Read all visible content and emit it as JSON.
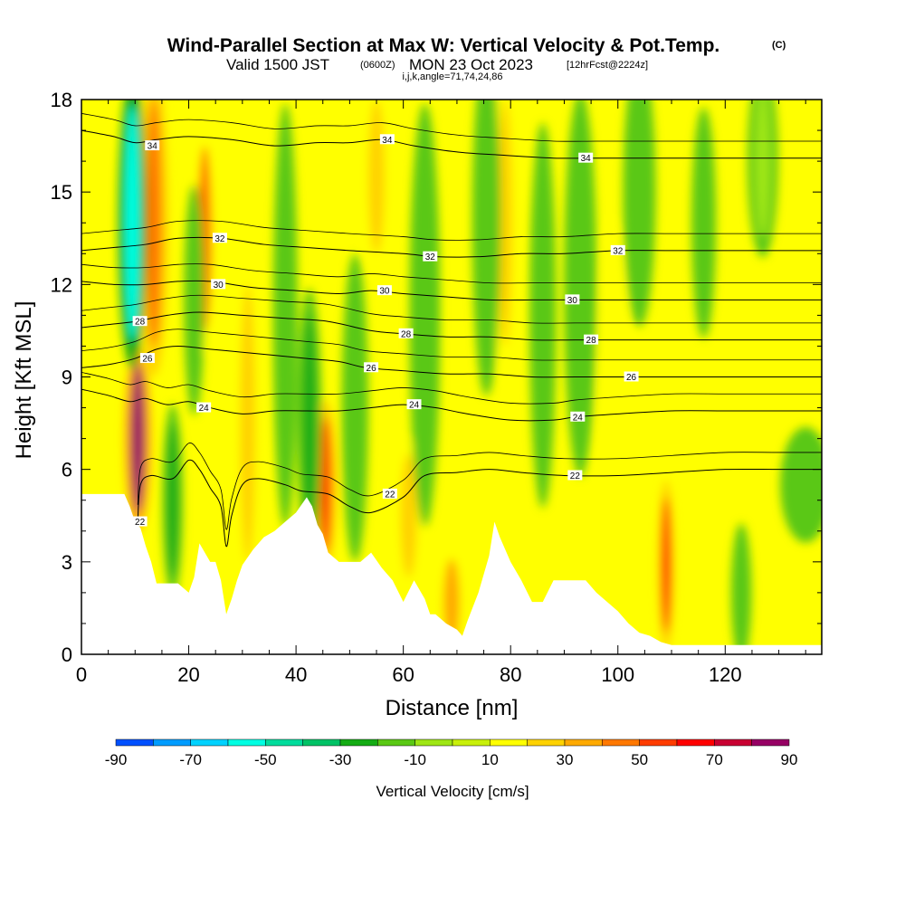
{
  "chart_data": {
    "type": "heatmap",
    "title": "Wind-Parallel Section at Max W: Vertical Velocity & Pot.Temp.",
    "title_unit": "(C)",
    "subtitle": {
      "valid": "Valid 1500 JST",
      "utc": "(0600Z)",
      "date": "MON 23 Oct 2023",
      "forecast": "[12hrFcst@2224z]"
    },
    "params": "i,j,k,angle=71,74,24,86",
    "xlabel": "Distance [nm]",
    "ylabel": "Height [Kft MSL]",
    "xlim": [
      0,
      138
    ],
    "ylim": [
      0,
      18
    ],
    "x_ticks": [
      0,
      20,
      40,
      60,
      80,
      100,
      120
    ],
    "y_ticks": [
      0,
      3,
      6,
      9,
      12,
      15,
      18
    ],
    "colorbar": {
      "label": "Vertical Velocity [cm/s]",
      "tick_labels": [
        "-90",
        "-70",
        "-50",
        "-30",
        "-10",
        "10",
        "30",
        "50",
        "70",
        "90"
      ],
      "levels": [
        -90,
        -80,
        -70,
        -60,
        -50,
        -40,
        -30,
        -20,
        -10,
        0,
        10,
        20,
        30,
        40,
        50,
        60,
        70,
        80,
        90
      ],
      "colors": [
        "#0000ff",
        "#0050ff",
        "#009cff",
        "#00d2ff",
        "#00ffe2",
        "#00dc9c",
        "#00c266",
        "#14ac14",
        "#5ac814",
        "#9ee614",
        "#c8f00a",
        "#ffff00",
        "#ffd200",
        "#ffaa00",
        "#ff7800",
        "#ff3c00",
        "#ff0000",
        "#c80032",
        "#960064",
        "#5a0096"
      ]
    },
    "background_color": "#ffff00",
    "terrain_profile": {
      "x": [
        0,
        4,
        8,
        9,
        10,
        11,
        12,
        13,
        14,
        16,
        18,
        20,
        21,
        22,
        24,
        25,
        26,
        27,
        28,
        29,
        30,
        32,
        34,
        36,
        38,
        40,
        42,
        43,
        44,
        45,
        46,
        48,
        50,
        52,
        54,
        56,
        58,
        60,
        62,
        64,
        65,
        66,
        68,
        70,
        71,
        72,
        74,
        76,
        77,
        78,
        80,
        82,
        84,
        86,
        88,
        90,
        92,
        94,
        96,
        98,
        100,
        102,
        104,
        106,
        108,
        110,
        112,
        115,
        120,
        125,
        130,
        135,
        138
      ],
      "y": [
        5.2,
        5.2,
        5.2,
        4.8,
        4.3,
        4.1,
        3.5,
        3.0,
        2.3,
        2.3,
        2.3,
        2.0,
        2.5,
        3.6,
        3.0,
        3.0,
        2.4,
        1.3,
        1.8,
        2.4,
        2.9,
        3.4,
        3.8,
        4.0,
        4.3,
        4.6,
        5.1,
        4.8,
        4.2,
        3.9,
        3.3,
        3.0,
        3.0,
        3.0,
        3.3,
        2.8,
        2.4,
        1.7,
        2.4,
        1.8,
        1.3,
        1.3,
        1.0,
        0.8,
        0.6,
        1.1,
        2.0,
        3.2,
        4.3,
        3.8,
        3.0,
        2.4,
        1.7,
        1.7,
        2.4,
        2.4,
        2.4,
        2.4,
        2.0,
        1.7,
        1.4,
        1.0,
        0.7,
        0.6,
        0.4,
        0.3,
        0.3,
        0.3,
        0.3,
        0.3,
        0.3,
        0.3,
        0.3
      ]
    },
    "velocity_features": [
      {
        "x": 10.5,
        "y": 7.0,
        "rx": 1.3,
        "ry": 2.4,
        "value": 85
      },
      {
        "x": 13.5,
        "y": 14.0,
        "rx": 1.4,
        "ry": 4.0,
        "value": 45
      },
      {
        "x": 9.5,
        "y": 14.0,
        "rx": 1.4,
        "ry": 3.8,
        "value": -55
      },
      {
        "x": 23.0,
        "y": 13.5,
        "rx": 1.3,
        "ry": 3.0,
        "value": 40
      },
      {
        "x": 21.0,
        "y": 11.5,
        "rx": 1.0,
        "ry": 3.0,
        "value": -20
      },
      {
        "x": 45.5,
        "y": 5.5,
        "rx": 1.1,
        "ry": 2.2,
        "value": 55
      },
      {
        "x": 42.5,
        "y": 7.5,
        "rx": 1.2,
        "ry": 3.5,
        "value": -30
      },
      {
        "x": 55.0,
        "y": 15.5,
        "rx": 1.5,
        "ry": 2.5,
        "value": 25
      },
      {
        "x": 79.0,
        "y": 14.0,
        "rx": 1.3,
        "ry": 4.0,
        "value": 25
      },
      {
        "x": 75.5,
        "y": 14.0,
        "rx": 1.4,
        "ry": 4.5,
        "value": -20
      },
      {
        "x": 109.0,
        "y": 2.9,
        "rx": 0.8,
        "ry": 2.2,
        "value": 65
      },
      {
        "x": 38.0,
        "y": 11.0,
        "rx": 1.2,
        "ry": 5.5,
        "value": -15
      },
      {
        "x": 69.0,
        "y": 1.7,
        "rx": 1.5,
        "ry": 1.4,
        "value": 30
      },
      {
        "x": 61.0,
        "y": 4.5,
        "rx": 1.5,
        "ry": 2.0,
        "value": 20
      },
      {
        "x": 64.0,
        "y": 11.0,
        "rx": 1.5,
        "ry": 5.5,
        "value": -12
      },
      {
        "x": 93.0,
        "y": 12.0,
        "rx": 1.6,
        "ry": 5.0,
        "value": -12
      },
      {
        "x": 104.0,
        "y": 15.0,
        "rx": 1.6,
        "ry": 3.5,
        "value": -15
      },
      {
        "x": 116.0,
        "y": 14.0,
        "rx": 1.2,
        "ry": 3.0,
        "value": -12
      },
      {
        "x": 127.0,
        "y": 16.0,
        "rx": 1.5,
        "ry": 2.5,
        "value": -10
      },
      {
        "x": 135.0,
        "y": 5.5,
        "rx": 2.5,
        "ry": 1.5,
        "value": -15
      },
      {
        "x": 123.0,
        "y": 2.0,
        "rx": 1.0,
        "ry": 1.8,
        "value": -15
      },
      {
        "x": 31.0,
        "y": 7.5,
        "rx": 1.4,
        "ry": 4.5,
        "value": 20
      },
      {
        "x": 51.0,
        "y": 8.0,
        "rx": 1.3,
        "ry": 4.0,
        "value": -15
      },
      {
        "x": 86.0,
        "y": 11.0,
        "rx": 1.3,
        "ry": 5.0,
        "value": -12
      },
      {
        "x": 99.0,
        "y": 9.0,
        "rx": 1.4,
        "ry": 4.0,
        "value": 15
      },
      {
        "x": 17.0,
        "y": 5.0,
        "rx": 1.0,
        "ry": 2.5,
        "value": -25
      }
    ],
    "theta_contours": [
      {
        "value": 22,
        "label_at": [
          10.9,
          4.3
        ],
        "points": [
          [
            10.5,
            4.3
          ],
          [
            11,
            5.5
          ],
          [
            13,
            5.8
          ],
          [
            17,
            5.7
          ],
          [
            20,
            6.3
          ],
          [
            22,
            6.0
          ],
          [
            24,
            5.4
          ],
          [
            26,
            4.8
          ],
          [
            27,
            3.5
          ],
          [
            28,
            4.5
          ],
          [
            30,
            5.5
          ],
          [
            33,
            5.7
          ],
          [
            38,
            5.5
          ],
          [
            41,
            5.3
          ],
          [
            46,
            5.2
          ],
          [
            50,
            4.8
          ],
          [
            54,
            4.6
          ],
          [
            60,
            5.1
          ],
          [
            64,
            5.8
          ],
          [
            70,
            5.9
          ],
          [
            76,
            6.0
          ],
          [
            82,
            5.9
          ],
          [
            90,
            5.8
          ],
          [
            100,
            5.8
          ],
          [
            110,
            5.9
          ],
          [
            120,
            6.0
          ],
          [
            130,
            6.0
          ],
          [
            138,
            6.0
          ]
        ]
      },
      {
        "value": 24,
        "label_at": [
          22.8,
          8.0
        ],
        "points": [
          [
            0,
            8.6
          ],
          [
            5,
            8.4
          ],
          [
            9,
            8.2
          ],
          [
            12,
            8.3
          ],
          [
            16,
            8.1
          ],
          [
            20,
            8.2
          ],
          [
            24,
            8.0
          ],
          [
            30,
            7.8
          ],
          [
            36,
            7.9
          ],
          [
            42,
            7.9
          ],
          [
            48,
            7.9
          ],
          [
            54,
            8.0
          ],
          [
            60,
            8.1
          ],
          [
            66,
            8.0
          ],
          [
            72,
            7.8
          ],
          [
            80,
            7.6
          ],
          [
            88,
            7.6
          ],
          [
            92,
            7.7
          ],
          [
            100,
            7.8
          ],
          [
            110,
            7.9
          ],
          [
            120,
            7.9
          ],
          [
            130,
            7.9
          ],
          [
            138,
            7.9
          ]
        ]
      },
      {
        "value": 26,
        "label_at": [
          12.3,
          9.6
        ],
        "points": [
          [
            0,
            9.3
          ],
          [
            5,
            9.4
          ],
          [
            10,
            9.6
          ],
          [
            14,
            9.9
          ],
          [
            18,
            10.0
          ],
          [
            24,
            9.9
          ],
          [
            30,
            9.8
          ],
          [
            36,
            9.7
          ],
          [
            42,
            9.6
          ],
          [
            48,
            9.5
          ],
          [
            53,
            9.3
          ],
          [
            60,
            9.2
          ],
          [
            68,
            9.1
          ],
          [
            76,
            9.1
          ],
          [
            84,
            9.0
          ],
          [
            92,
            9.0
          ],
          [
            100,
            9.0
          ],
          [
            110,
            9.0
          ],
          [
            120,
            9.0
          ],
          [
            130,
            9.0
          ],
          [
            138,
            9.0
          ]
        ]
      },
      {
        "value": 28,
        "label_at": [
          10.9,
          10.8
        ],
        "points": [
          [
            0,
            10.6
          ],
          [
            5,
            10.7
          ],
          [
            10,
            10.8
          ],
          [
            16,
            11.0
          ],
          [
            22,
            11.1
          ],
          [
            30,
            11.0
          ],
          [
            38,
            10.9
          ],
          [
            46,
            10.8
          ],
          [
            54,
            10.5
          ],
          [
            60,
            10.4
          ],
          [
            68,
            10.3
          ],
          [
            76,
            10.3
          ],
          [
            84,
            10.2
          ],
          [
            92,
            10.2
          ],
          [
            100,
            10.2
          ],
          [
            110,
            10.2
          ],
          [
            120,
            10.2
          ],
          [
            130,
            10.2
          ],
          [
            138,
            10.2
          ]
        ]
      },
      {
        "value": 30,
        "label_at": [
          25.5,
          12.0
        ],
        "points": [
          [
            0,
            12.1
          ],
          [
            6,
            12.0
          ],
          [
            12,
            12.0
          ],
          [
            18,
            12.1
          ],
          [
            24,
            12.1
          ],
          [
            32,
            11.9
          ],
          [
            40,
            11.8
          ],
          [
            48,
            11.7
          ],
          [
            54,
            11.8
          ],
          [
            60,
            11.7
          ],
          [
            68,
            11.6
          ],
          [
            76,
            11.5
          ],
          [
            84,
            11.5
          ],
          [
            92,
            11.5
          ],
          [
            100,
            11.5
          ],
          [
            110,
            11.5
          ],
          [
            120,
            11.5
          ],
          [
            130,
            11.5
          ],
          [
            138,
            11.5
          ]
        ]
      },
      {
        "value": 32,
        "label_at": [
          25.8,
          13.5
        ],
        "points": [
          [
            0,
            13.1
          ],
          [
            6,
            13.2
          ],
          [
            12,
            13.3
          ],
          [
            18,
            13.5
          ],
          [
            26,
            13.5
          ],
          [
            34,
            13.3
          ],
          [
            42,
            13.2
          ],
          [
            50,
            13.1
          ],
          [
            60,
            13.0
          ],
          [
            66,
            12.9
          ],
          [
            74,
            12.9
          ],
          [
            82,
            13.0
          ],
          [
            90,
            13.0
          ],
          [
            100,
            13.1
          ],
          [
            110,
            13.1
          ],
          [
            120,
            13.1
          ],
          [
            130,
            13.1
          ],
          [
            138,
            13.1
          ]
        ]
      },
      {
        "value": 34,
        "label_at": [
          13.2,
          16.5
        ],
        "points": [
          [
            0,
            17.0
          ],
          [
            6,
            16.8
          ],
          [
            10,
            16.6
          ],
          [
            14,
            16.7
          ],
          [
            20,
            16.8
          ],
          [
            28,
            16.7
          ],
          [
            36,
            16.5
          ],
          [
            44,
            16.6
          ],
          [
            50,
            16.6
          ],
          [
            56,
            16.7
          ],
          [
            62,
            16.5
          ],
          [
            70,
            16.3
          ],
          [
            78,
            16.2
          ],
          [
            88,
            16.1
          ],
          [
            96,
            16.1
          ],
          [
            104,
            16.1
          ],
          [
            112,
            16.1
          ],
          [
            120,
            16.1
          ],
          [
            130,
            16.1
          ],
          [
            138,
            16.1
          ]
        ]
      }
    ],
    "theta_contour_labels": [
      {
        "text": "22",
        "x": 10.9,
        "y": 4.3
      },
      {
        "text": "22",
        "x": 57.5,
        "y": 5.2
      },
      {
        "text": "22",
        "x": 92.0,
        "y": 5.8
      },
      {
        "text": "24",
        "x": 22.8,
        "y": 8.0
      },
      {
        "text": "24",
        "x": 62.0,
        "y": 8.1
      },
      {
        "text": "24",
        "x": 92.5,
        "y": 7.7
      },
      {
        "text": "26",
        "x": 12.3,
        "y": 9.6
      },
      {
        "text": "26",
        "x": 54.0,
        "y": 9.3
      },
      {
        "text": "26",
        "x": 102.5,
        "y": 9.0
      },
      {
        "text": "28",
        "x": 10.9,
        "y": 10.8
      },
      {
        "text": "28",
        "x": 60.5,
        "y": 10.4
      },
      {
        "text": "28",
        "x": 95.0,
        "y": 10.2
      },
      {
        "text": "30",
        "x": 25.5,
        "y": 12.0
      },
      {
        "text": "30",
        "x": 56.5,
        "y": 11.8
      },
      {
        "text": "30",
        "x": 91.5,
        "y": 11.5
      },
      {
        "text": "32",
        "x": 25.8,
        "y": 13.5
      },
      {
        "text": "32",
        "x": 65.0,
        "y": 12.9
      },
      {
        "text": "32",
        "x": 100.0,
        "y": 13.1
      },
      {
        "text": "34",
        "x": 13.2,
        "y": 16.5
      },
      {
        "text": "34",
        "x": 57.0,
        "y": 16.7
      },
      {
        "text": "34",
        "x": 94.0,
        "y": 16.1
      }
    ]
  }
}
